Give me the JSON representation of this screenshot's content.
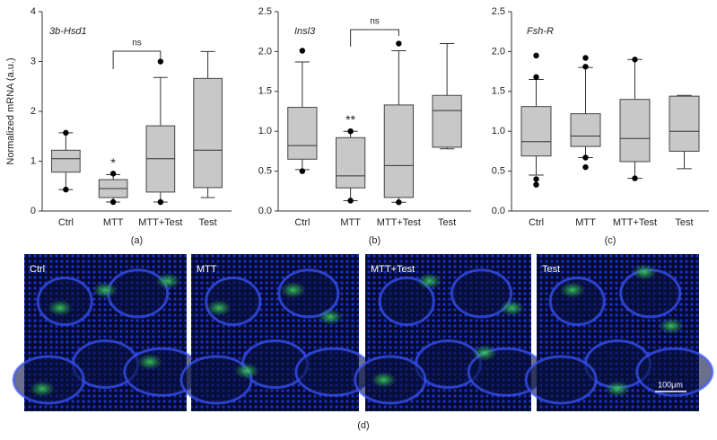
{
  "chart_data": [
    {
      "type": "box",
      "title": "3b-Hsd1",
      "ylabel": "Normalized mRNA (a.u.)",
      "caption": "(a)",
      "categories": [
        "Ctrl",
        "MTT",
        "MTT+Test",
        "Test"
      ],
      "boxes": [
        {
          "min": 0.43,
          "q1": 0.78,
          "median": 1.05,
          "q3": 1.22,
          "max": 1.57,
          "outliers": [
            1.57,
            0.43
          ]
        },
        {
          "min": 0.18,
          "q1": 0.27,
          "median": 0.45,
          "q3": 0.63,
          "max": 0.73,
          "outliers": [
            0.75,
            0.18
          ]
        },
        {
          "min": 0.18,
          "q1": 0.38,
          "median": 1.05,
          "q3": 1.71,
          "max": 2.68,
          "outliers": [
            3.0,
            0.18
          ]
        },
        {
          "min": 0.27,
          "q1": 0.47,
          "median": 1.22,
          "q3": 2.66,
          "max": 3.2,
          "outliers": []
        }
      ],
      "significance": [
        null,
        "*",
        null,
        null
      ],
      "comparison": "ns",
      "color": "#c8c8c8",
      "ylim": [
        0,
        4
      ],
      "yticks": [
        0,
        1,
        2,
        3,
        4
      ]
    },
    {
      "type": "box",
      "title": "Insl3",
      "caption": "(b)",
      "categories": [
        "Ctrl",
        "MTT",
        "MTT+Test",
        "Test"
      ],
      "boxes": [
        {
          "min": 0.52,
          "q1": 0.65,
          "median": 0.82,
          "q3": 1.3,
          "max": 1.87,
          "outliers": [
            2.01,
            0.5
          ]
        },
        {
          "min": 0.13,
          "q1": 0.29,
          "median": 0.44,
          "q3": 0.92,
          "max": 1.0,
          "outliers": [
            1.0,
            0.13
          ]
        },
        {
          "min": 0.11,
          "q1": 0.17,
          "median": 0.57,
          "q3": 1.33,
          "max": 2.01,
          "outliers": [
            2.1,
            0.11
          ]
        },
        {
          "min": 0.78,
          "q1": 0.8,
          "median": 1.26,
          "q3": 1.45,
          "max": 2.1,
          "outliers": []
        }
      ],
      "significance": [
        null,
        "**",
        null,
        null
      ],
      "comparison": "ns",
      "color": "#c8c8c8",
      "ylim": [
        0,
        2.5
      ],
      "yticks": [
        {
          "value": 0,
          "label": "0.0"
        },
        0.5,
        {
          "value": 1,
          "label": "1.0"
        },
        1.5,
        {
          "value": 2,
          "label": "2.0"
        },
        2.5
      ]
    },
    {
      "type": "box",
      "title": "Fsh-R",
      "caption": "(c)",
      "categories": [
        "Ctrl",
        "MTT",
        "MTT+Test",
        "Test"
      ],
      "boxes": [
        {
          "min": 0.45,
          "q1": 0.69,
          "median": 0.87,
          "q3": 1.31,
          "max": 1.65,
          "outliers": [
            1.95,
            1.68,
            0.4,
            0.33
          ]
        },
        {
          "min": 0.67,
          "q1": 0.81,
          "median": 0.94,
          "q3": 1.22,
          "max": 1.8,
          "outliers": [
            1.92,
            1.81,
            0.67,
            0.55
          ]
        },
        {
          "min": 0.41,
          "q1": 0.62,
          "median": 0.91,
          "q3": 1.4,
          "max": 1.9,
          "outliers": [
            1.9,
            0.41
          ]
        },
        {
          "min": 0.53,
          "q1": 0.75,
          "median": 1.0,
          "q3": 1.44,
          "max": 1.45,
          "outliers": []
        }
      ],
      "significance": [
        null,
        null,
        null,
        null
      ],
      "color": "#c8c8c8",
      "ylim": [
        0,
        2.5
      ],
      "yticks": [
        {
          "value": 0,
          "label": "0.0"
        },
        0.5,
        {
          "value": 1,
          "label": "1.0"
        },
        1.5,
        {
          "value": 2,
          "label": "2.0"
        },
        2.5
      ]
    }
  ],
  "images": {
    "labels": [
      "Ctrl",
      "MTT",
      "MTT+Test",
      "Test"
    ],
    "scale_bar": "100μm",
    "caption": "(d)"
  }
}
